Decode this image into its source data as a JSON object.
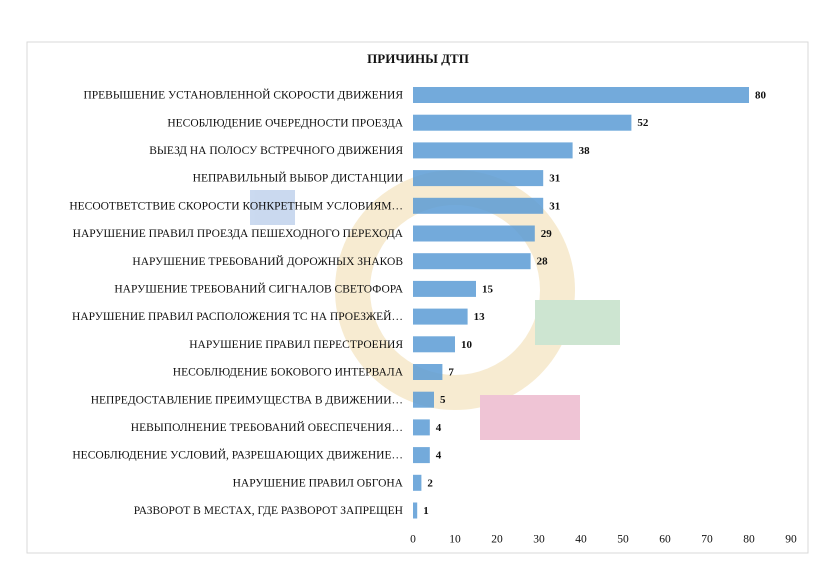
{
  "chart_data": {
    "type": "bar",
    "orientation": "horizontal",
    "title": "ПРИЧИНЫ ДТП",
    "categories": [
      "ПРЕВЫШЕНИЕ УСТАНОВЛЕННОЙ СКОРОСТИ ДВИЖЕНИЯ",
      "НЕСОБЛЮДЕНИЕ ОЧЕРЕДНОСТИ ПРОЕЗДА",
      "ВЫЕЗД НА ПОЛОСУ ВСТРЕЧНОГО ДВИЖЕНИЯ",
      "НЕПРАВИЛЬНЫЙ ВЫБОР ДИСТАНЦИИ",
      "НЕСООТВЕТСТВИЕ СКОРОСТИ КОНКРЕТНЫМ УСЛОВИЯМ…",
      "НАРУШЕНИЕ ПРАВИЛ ПРОЕЗДА ПЕШЕХОДНОГО ПЕРЕХОДА",
      "НАРУШЕНИЕ ТРЕБОВАНИЙ ДОРОЖНЫХ ЗНАКОВ",
      "НАРУШЕНИЕ ТРЕБОВАНИЙ СИГНАЛОВ СВЕТОФОРА",
      "НАРУШЕНИЕ ПРАВИЛ РАСПОЛОЖЕНИЯ ТС НА ПРОЕЗЖЕЙ…",
      "НАРУШЕНИЕ ПРАВИЛ ПЕРЕСТРОЕНИЯ",
      "НЕСОБЛЮДЕНИЕ БОКОВОГО ИНТЕРВАЛА",
      "НЕПРЕДОСТАВЛЕНИЕ ПРЕИМУЩЕСТВА В ДВИЖЕНИИ…",
      "НЕВЫПОЛНЕНИЕ ТРЕБОВАНИЙ ОБЕСПЕЧЕНИЯ…",
      "НЕСОБЛЮДЕНИЕ УСЛОВИЙ, РАЗРЕШАЮЩИХ ДВИЖЕНИЕ…",
      "НАРУШЕНИЕ ПРАВИЛ ОБГОНА",
      "РАЗВОРОТ В МЕСТАХ, ГДЕ РАЗВОРОТ ЗАПРЕЩЕН"
    ],
    "values": [
      80,
      52,
      38,
      31,
      31,
      29,
      28,
      15,
      13,
      10,
      7,
      5,
      4,
      4,
      2,
      1
    ],
    "color": "#5b9bd5",
    "xlim": [
      0,
      90
    ],
    "xticks": [
      0,
      10,
      20,
      30,
      40,
      50,
      60,
      70,
      80,
      90
    ]
  }
}
